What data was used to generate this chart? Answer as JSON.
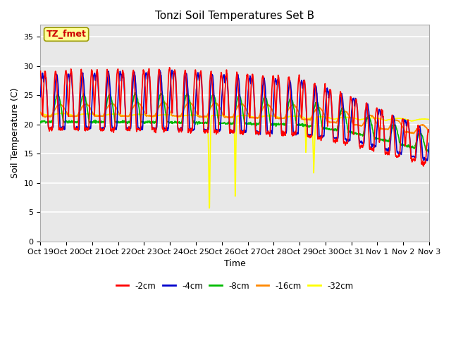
{
  "title": "Tonzi Soil Temperatures Set B",
  "xlabel": "Time",
  "ylabel": "Soil Temperature (C)",
  "ylim": [
    0,
    37
  ],
  "yticks": [
    0,
    5,
    10,
    15,
    20,
    25,
    30,
    35
  ],
  "plot_bg_color": "#e8e8e8",
  "grid_color": "white",
  "annotation_text": "TZ_fmet",
  "annotation_bg": "#ffff99",
  "annotation_border": "#999900",
  "colors": {
    "-2cm": "#ff0000",
    "-4cm": "#0000cc",
    "-8cm": "#00bb00",
    "-16cm": "#ff8800",
    "-32cm": "#ffff00"
  },
  "x_tick_labels": [
    "Oct 19",
    "Oct 20",
    "Oct 21",
    "Oct 22",
    "Oct 23",
    "Oct 24",
    "Oct 25",
    "Oct 26",
    "Oct 27",
    "Oct 28",
    "Oct 29",
    "Oct 30",
    "Oct 31",
    "Nov 1",
    "Nov 2",
    "Nov 3"
  ],
  "title_fontsize": 11,
  "label_fontsize": 9,
  "tick_fontsize": 8,
  "line_width": 1.2
}
